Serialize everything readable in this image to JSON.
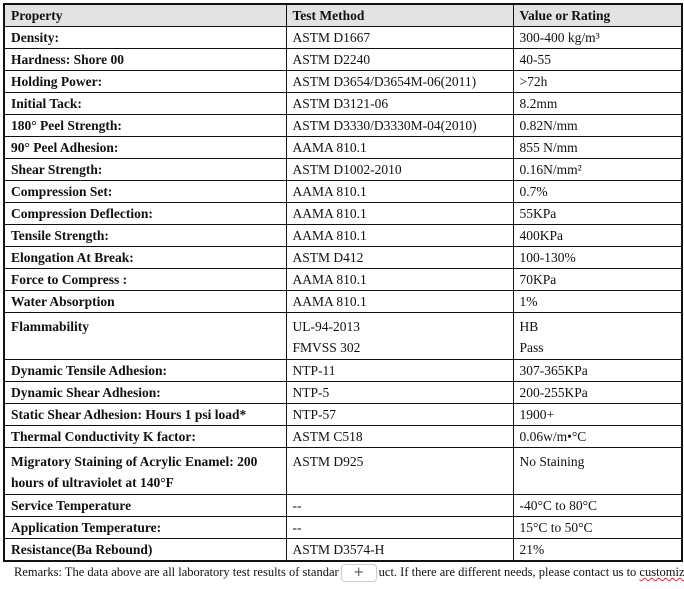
{
  "headers": [
    "Property",
    "Test Method",
    "Value or Rating"
  ],
  "rows": [
    {
      "property": "Density:",
      "method": "ASTM D1667",
      "value": "300-400 kg/m³"
    },
    {
      "property": "Hardness: Shore 00",
      "method": "ASTM D2240",
      "value": "40-55"
    },
    {
      "property": "Holding Power:",
      "method": "ASTM D3654/D3654M-06(2011)",
      "value": ">72h"
    },
    {
      "property": "Initial Tack:",
      "method": "ASTM D3121-06",
      "value": "8.2mm"
    },
    {
      "property": "180° Peel Strength:",
      "method": "ASTM D3330/D3330M-04(2010)",
      "value": "0.82N/mm"
    },
    {
      "property": "90° Peel Adhesion:",
      "method": "AAMA 810.1",
      "value": "855 N/mm"
    },
    {
      "property": "Shear Strength:",
      "method": "ASTM D1002-2010",
      "value": "0.16N/mm²"
    },
    {
      "property": "Compression Set:",
      "method": "AAMA 810.1",
      "value": "0.7%"
    },
    {
      "property": "Compression Deflection:",
      "method": "AAMA 810.1",
      "value": "55KPa"
    },
    {
      "property": "Tensile Strength:",
      "method": "AAMA 810.1",
      "value": "400KPa"
    },
    {
      "property": "Elongation At Break:",
      "method": "ASTM D412",
      "value": "100-130%"
    },
    {
      "property": "Force to Compress :",
      "method": "AAMA 810.1",
      "value": "70KPa"
    },
    {
      "property": "Water Absorption",
      "method": "AAMA 810.1",
      "value": "1%"
    },
    {
      "property": "Flammability",
      "method": "UL-94-2013",
      "method2": "FMVSS 302",
      "value": "HB",
      "value2": "Pass"
    },
    {
      "property": "Dynamic Tensile Adhesion:",
      "method": "NTP-11",
      "value": "307-365KPa"
    },
    {
      "property": "Dynamic Shear Adhesion:",
      "method": "NTP-5",
      "value": "200-255KPa"
    },
    {
      "property": "Static Shear Adhesion: Hours 1 psi load*",
      "method": "NTP-57",
      "value": "1900+"
    },
    {
      "property": "Thermal Conductivity K factor:",
      "method": "ASTM C518",
      "value": "0.06w/m•°C"
    },
    {
      "property": "Migratory Staining of Acrylic Enamel: 200 hours of ultraviolet at 140°F",
      "method": "ASTM D925",
      "value": "No Staining"
    },
    {
      "property": "Service Temperature",
      "method": "--",
      "value": "-40°C to 80°C"
    },
    {
      "property": "Application Temperature:",
      "method": "--",
      "value": "15°C to 50°C"
    },
    {
      "property": "Resistance(Ba Rebound)",
      "method": "ASTM D3574-H",
      "value": "21%"
    }
  ],
  "remarks": {
    "before": "Remarks: The data above are all laboratory test results of standar",
    "after": "uct. If there are different needs, please contact us to ",
    "misspelled": "customizd",
    "end": "."
  },
  "add_button": "+"
}
